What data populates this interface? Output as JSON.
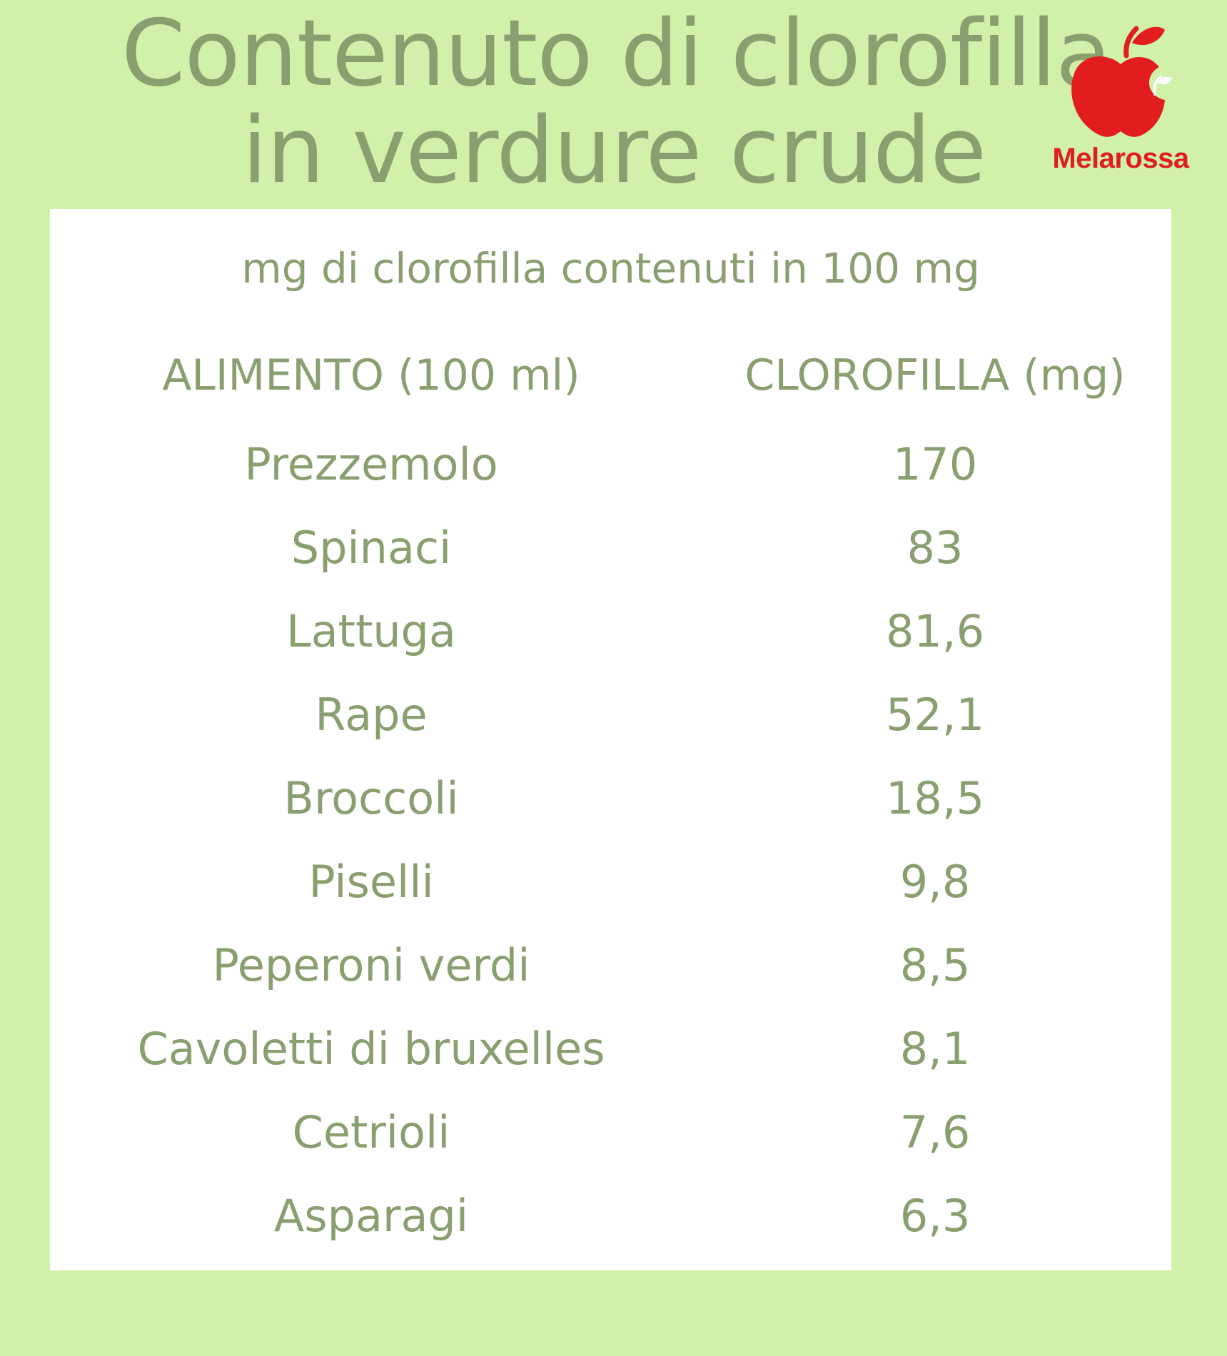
{
  "header": {
    "title_line1": "Contenuto di clorofilla",
    "title_line2": "in verdure crude"
  },
  "logo": {
    "text": "Melarossa",
    "icon": "apple-icon",
    "color": "#e11d1d"
  },
  "table": {
    "subtitle": "mg di clorofilla contenuti in 100 mg",
    "columns": [
      "ALIMENTO (100 ml)",
      "CLOROFILLA (mg)"
    ],
    "rows": [
      {
        "food": "Prezzemolo",
        "value": "170"
      },
      {
        "food": "Spinaci",
        "value": "83"
      },
      {
        "food": "Lattuga",
        "value": "81,6"
      },
      {
        "food": "Rape",
        "value": "52,1"
      },
      {
        "food": "Broccoli",
        "value": "18,5"
      },
      {
        "food": "Piselli",
        "value": "9,8"
      },
      {
        "food": "Peperoni verdi",
        "value": "8,5"
      },
      {
        "food": "Cavoletti di bruxelles",
        "value": "8,1"
      },
      {
        "food": "Cetrioli",
        "value": "7,6"
      },
      {
        "food": "Asparagi",
        "value": "6,3"
      }
    ]
  },
  "colors": {
    "background": "#d1f1ab",
    "text": "#8a9f70",
    "panel": "#ffffff"
  }
}
